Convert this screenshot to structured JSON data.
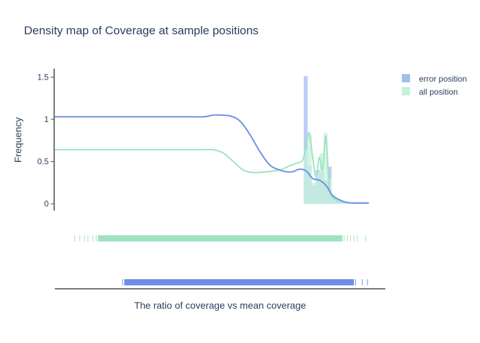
{
  "chart_data": {
    "type": "histogram-density",
    "title": "Density map of Coverage at sample positions",
    "xlabel": "The ratio of coverage vs mean coverage",
    "ylabel": "Frequency",
    "ylim": [
      -0.08,
      1.6
    ],
    "xlim": [
      0,
      1
    ],
    "yticks": [
      0,
      0.5,
      1,
      1.5
    ],
    "ytick_labels": [
      "0",
      "0.5",
      "1",
      "1.5"
    ],
    "legend_position": "top-right",
    "series": [
      {
        "name": "error position",
        "color": "#6d8fe4",
        "bar_color": "#a4bdf0",
        "histogram": [
          {
            "x0": 0.753,
            "x1": 0.765,
            "y": 1.51
          },
          {
            "x0": 0.765,
            "x1": 0.777,
            "y": 0.45
          },
          {
            "x0": 0.777,
            "x1": 0.789,
            "y": 0.22
          },
          {
            "x0": 0.789,
            "x1": 0.801,
            "y": 0.4
          },
          {
            "x0": 0.801,
            "x1": 0.813,
            "y": 0.38
          },
          {
            "x0": 0.813,
            "x1": 0.825,
            "y": 0.28
          },
          {
            "x0": 0.825,
            "x1": 0.837,
            "y": 0.44
          },
          {
            "x0": 0.837,
            "x1": 0.849,
            "y": 0.08
          },
          {
            "x0": 0.849,
            "x1": 0.861,
            "y": 0.04
          },
          {
            "x0": 0.861,
            "x1": 0.88,
            "y": 0.02
          },
          {
            "x0": 0.88,
            "x1": 0.94,
            "y": 0.01
          },
          {
            "x0": 0.94,
            "x1": 0.946,
            "y": 0.02
          }
        ],
        "density": {
          "x": [
            0.0,
            0.1,
            0.2,
            0.3,
            0.4,
            0.45,
            0.48,
            0.5,
            0.53,
            0.56,
            0.59,
            0.62,
            0.65,
            0.68,
            0.7,
            0.72,
            0.74,
            0.76,
            0.78,
            0.8,
            0.82,
            0.84,
            0.86,
            0.88,
            0.9,
            0.95
          ],
          "y": [
            1.03,
            1.03,
            1.03,
            1.03,
            1.03,
            1.03,
            1.05,
            1.05,
            1.04,
            0.98,
            0.82,
            0.62,
            0.46,
            0.4,
            0.38,
            0.38,
            0.41,
            0.39,
            0.3,
            0.28,
            0.22,
            0.1,
            0.05,
            0.02,
            0.01,
            0.01
          ]
        },
        "rug": {
          "from": 0.21,
          "to": 0.905,
          "sparse_start": [
            0.205,
            0.23
          ],
          "sparse_end": [
            0.91,
            0.93,
            0.946
          ]
        }
      },
      {
        "name": "all position",
        "color": "#9fe3c0",
        "bar_color": "#c6f1dc",
        "histogram": [
          {
            "x0": 0.753,
            "x1": 0.765,
            "y": 0.65
          },
          {
            "x0": 0.765,
            "x1": 0.777,
            "y": 0.82
          },
          {
            "x0": 0.777,
            "x1": 0.789,
            "y": 0.25
          },
          {
            "x0": 0.789,
            "x1": 0.801,
            "y": 0.38
          },
          {
            "x0": 0.801,
            "x1": 0.813,
            "y": 0.6
          },
          {
            "x0": 0.813,
            "x1": 0.825,
            "y": 0.84
          },
          {
            "x0": 0.825,
            "x1": 0.837,
            "y": 0.3
          },
          {
            "x0": 0.837,
            "x1": 0.849,
            "y": 0.1
          },
          {
            "x0": 0.849,
            "x1": 0.861,
            "y": 0.03
          },
          {
            "x0": 0.861,
            "x1": 0.88,
            "y": 0.02
          },
          {
            "x0": 0.88,
            "x1": 0.946,
            "y": 0.01
          }
        ],
        "density": {
          "x": [
            0.0,
            0.1,
            0.2,
            0.3,
            0.4,
            0.45,
            0.48,
            0.51,
            0.54,
            0.57,
            0.6,
            0.64,
            0.68,
            0.71,
            0.73,
            0.75,
            0.76,
            0.77,
            0.78,
            0.79,
            0.8,
            0.81,
            0.82,
            0.83,
            0.84,
            0.86,
            0.88,
            0.9,
            0.95
          ],
          "y": [
            0.64,
            0.64,
            0.64,
            0.64,
            0.64,
            0.64,
            0.64,
            0.6,
            0.5,
            0.4,
            0.37,
            0.38,
            0.4,
            0.45,
            0.48,
            0.52,
            0.7,
            0.84,
            0.55,
            0.32,
            0.55,
            0.4,
            0.8,
            0.2,
            0.08,
            0.03,
            0.02,
            0.01,
            0.01
          ]
        },
        "rug": {
          "from": 0.13,
          "to": 0.87,
          "sparse_start": [
            0.06,
            0.075,
            0.09,
            0.1,
            0.115,
            0.125
          ],
          "sparse_end": [
            0.875,
            0.885,
            0.895,
            0.905,
            0.915,
            0.94
          ]
        }
      }
    ]
  }
}
